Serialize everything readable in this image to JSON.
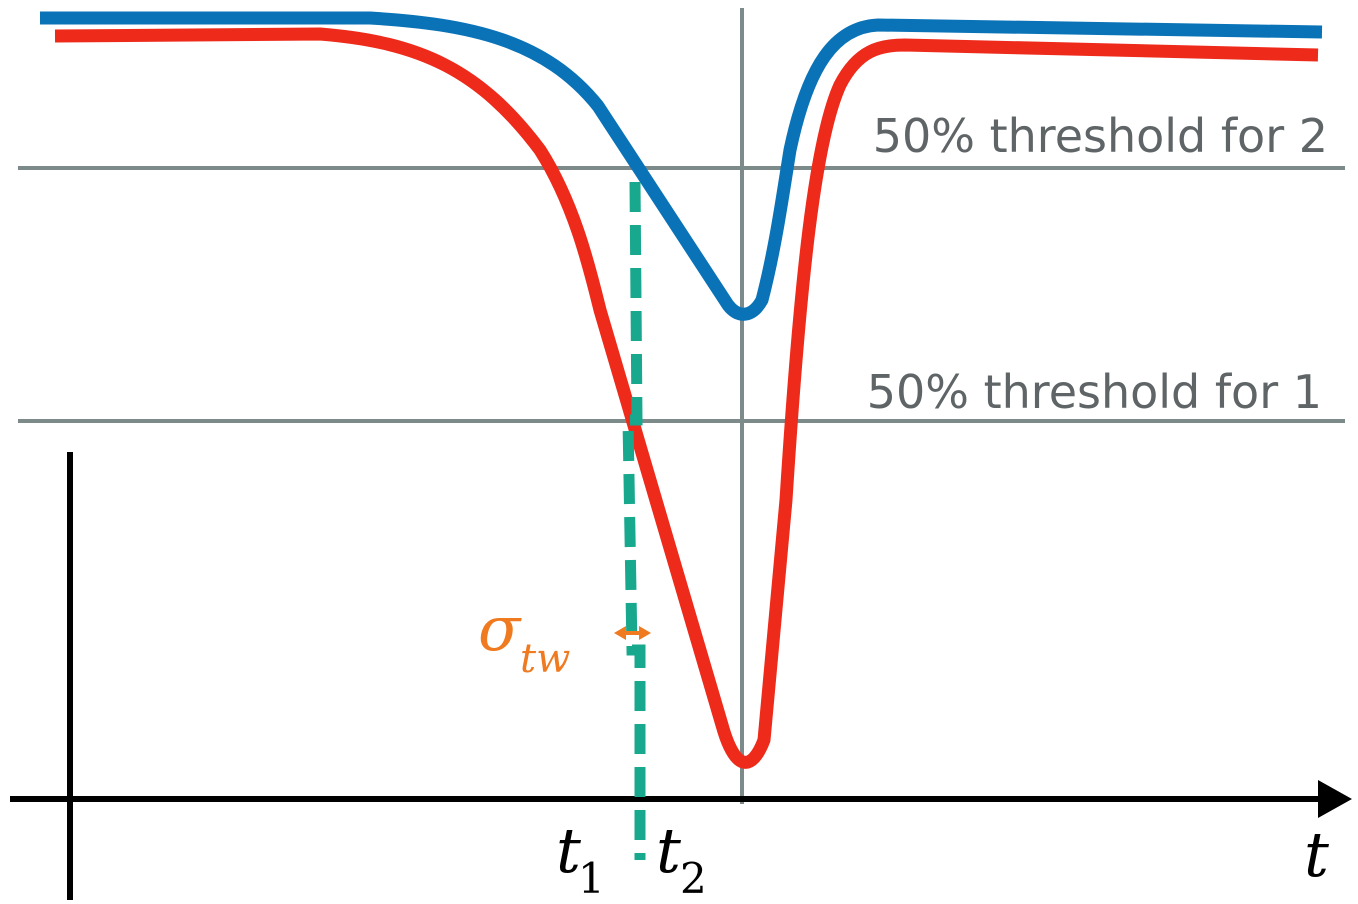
{
  "labels": {
    "threshold_2": "50% threshold for 2",
    "threshold_1": "50% threshold for 1",
    "t1_base": "t",
    "t1_sub": "1",
    "t2_base": "t",
    "t2_sub": "2",
    "axis_t": "t",
    "sigma_base": "σ",
    "sigma_sub": "tw"
  },
  "colors": {
    "signal_1": "#ee2a1b",
    "signal_2": "#0a73b8",
    "threshold_line": "#7d8a8a",
    "dashed_marker": "#18a88e",
    "sigma": "#ef7a1f",
    "axis": "#000000"
  }
}
